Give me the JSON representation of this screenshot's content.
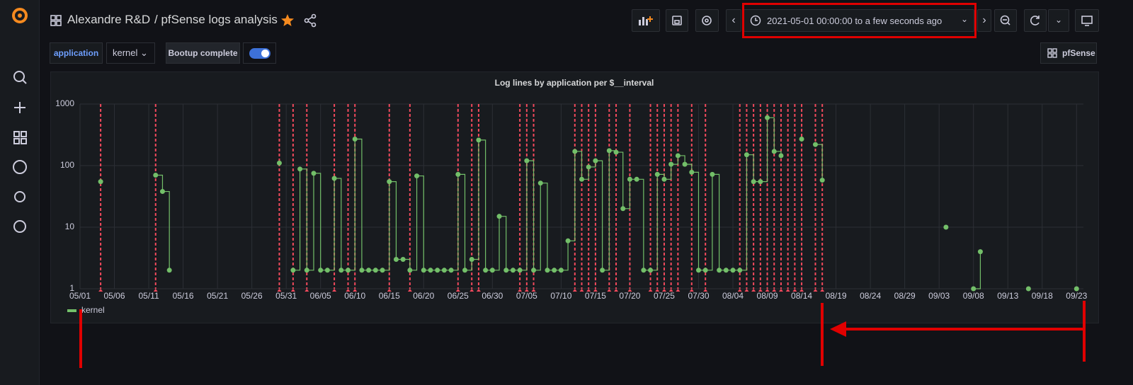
{
  "header": {
    "folder": "Alexandre R&D",
    "dashboard": "/ pfSense logs analysis",
    "time_range": "2021-05-01 00:00:00 to a few seconds ago"
  },
  "variables": {
    "label": "application",
    "value": "kernel",
    "toggle_label": "Bootup complete",
    "link": "pfSense"
  },
  "chart_data": {
    "type": "line",
    "title": "Log lines by application per $__interval",
    "line_style": "step",
    "log_scale": true,
    "grid": true,
    "x": [
      "05/04",
      "05/05",
      "05/12",
      "05/13",
      "05/14",
      "05/15",
      "05/30",
      "05/31",
      "06/01",
      "06/02",
      "06/03",
      "06/04",
      "06/05",
      "06/06",
      "06/07",
      "06/08",
      "06/09",
      "06/10",
      "06/11",
      "06/12",
      "06/13",
      "06/14",
      "06/15",
      "06/16",
      "06/17",
      "06/18",
      "06/19",
      "06/20",
      "06/21",
      "06/22",
      "06/23",
      "06/24",
      "06/25",
      "06/26",
      "06/27",
      "06/28",
      "06/29",
      "06/30",
      "07/01",
      "07/02",
      "07/03",
      "07/04",
      "07/05",
      "07/06",
      "07/07",
      "07/08",
      "07/09",
      "07/10",
      "07/11",
      "07/12",
      "07/13",
      "07/14",
      "07/15",
      "07/16",
      "07/17",
      "07/18",
      "07/19",
      "07/20",
      "07/21",
      "07/22",
      "07/23",
      "07/24",
      "07/25",
      "07/26",
      "07/27",
      "07/28",
      "07/29",
      "07/30",
      "07/31",
      "08/01",
      "08/02",
      "08/03",
      "08/04",
      "08/05",
      "08/06",
      "08/07",
      "08/08",
      "08/09",
      "08/10",
      "08/11",
      "08/12",
      "08/14",
      "08/15",
      "08/16",
      "08/17",
      "08/18",
      "09/04",
      "09/05",
      "09/08",
      "09/09",
      "09/10",
      "09/16",
      "09/17",
      "09/23"
    ],
    "series": [
      {
        "name": "kernel",
        "color": "#73bf69",
        "values": [
          55,
          null,
          70,
          38,
          2,
          null,
          110,
          null,
          2,
          88,
          2,
          75,
          2,
          2,
          62,
          2,
          2,
          270,
          2,
          2,
          2,
          2,
          55,
          3,
          3,
          2,
          68,
          2,
          2,
          2,
          2,
          2,
          72,
          2,
          3,
          260,
          2,
          2,
          15,
          2,
          2,
          2,
          120,
          2,
          52,
          2,
          2,
          2,
          6,
          170,
          60,
          95,
          120,
          2,
          175,
          165,
          20,
          60,
          60,
          2,
          2,
          72,
          60,
          105,
          145,
          105,
          78,
          2,
          2,
          72,
          2,
          2,
          2,
          2,
          150,
          55,
          55,
          600,
          170,
          145,
          null,
          270,
          null,
          220,
          58,
          null,
          10,
          null,
          1,
          4,
          null,
          1,
          null,
          1
        ]
      }
    ],
    "annotations": {
      "color": "#f2495c",
      "x": [
        "05/04",
        "05/12",
        "05/30",
        "06/01",
        "06/03",
        "06/07",
        "06/09",
        "06/10",
        "06/15",
        "06/18",
        "06/25",
        "06/27",
        "06/28",
        "07/04",
        "07/05",
        "07/06",
        "07/12",
        "07/13",
        "07/14",
        "07/15",
        "07/17",
        "07/18",
        "07/20",
        "07/23",
        "07/24",
        "07/25",
        "07/26",
        "07/27",
        "07/29",
        "07/31",
        "08/05",
        "08/06",
        "08/07",
        "08/08",
        "08/09",
        "08/10",
        "08/11",
        "08/12",
        "08/13",
        "08/14",
        "08/16",
        "08/17"
      ]
    },
    "xlim": [
      "05/01",
      "09/24"
    ],
    "xticks": [
      "05/01",
      "05/06",
      "05/11",
      "05/16",
      "05/21",
      "05/26",
      "05/31",
      "06/05",
      "06/10",
      "06/15",
      "06/20",
      "06/25",
      "06/30",
      "07/05",
      "07/10",
      "07/15",
      "07/20",
      "07/25",
      "07/30",
      "08/04",
      "08/09",
      "08/14",
      "08/19",
      "08/24",
      "08/29",
      "09/03",
      "09/08",
      "09/13",
      "09/18",
      "09/23"
    ],
    "ylim": [
      1,
      1000
    ],
    "yticks": [
      1,
      10,
      100,
      1000
    ]
  }
}
